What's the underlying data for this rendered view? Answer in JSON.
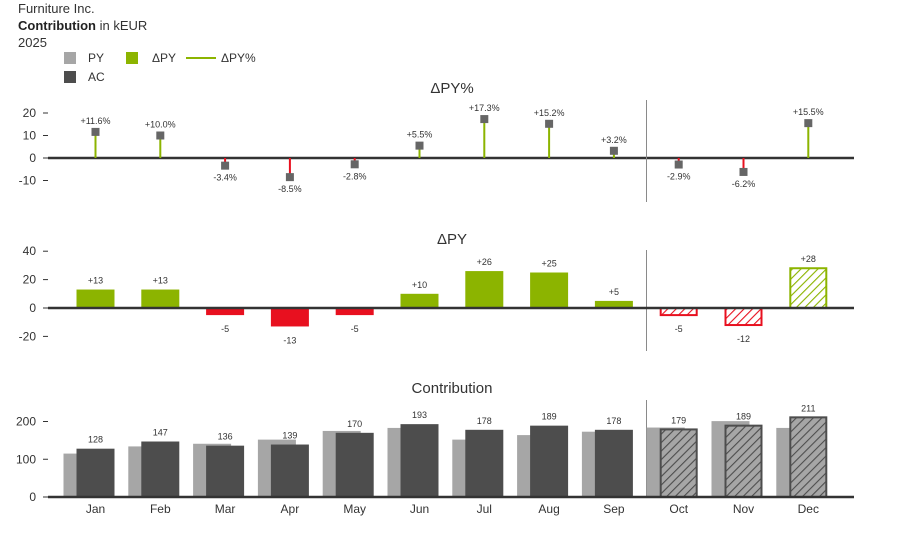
{
  "header": {
    "company": "Furniture Inc.",
    "measure": "Contribution",
    "unit_text": "in kEUR",
    "year": "2025"
  },
  "colors": {
    "py": "#a6a6a6",
    "ac": "#4d4d4d",
    "positive": "#8cb400",
    "negative": "#e8101f",
    "axis": "#333333",
    "divider": "#8a8a8a"
  },
  "legend": [
    {
      "key": "py",
      "label": "PY",
      "type": "box"
    },
    {
      "key": "ac",
      "label": "AC",
      "type": "box"
    },
    {
      "key": "dpy",
      "label": "ΔPY",
      "type": "box"
    },
    {
      "key": "dpy_pct",
      "label": "ΔPY%",
      "type": "line"
    }
  ],
  "chart_data": [
    {
      "type": "pin",
      "title": "ΔPY%",
      "categories": [
        "Jan",
        "Feb",
        "Mar",
        "Apr",
        "May",
        "Jun",
        "Jul",
        "Aug",
        "Sep",
        "Oct",
        "Nov",
        "Dec"
      ],
      "values": [
        11.6,
        10.0,
        -3.4,
        -8.5,
        -2.8,
        5.5,
        17.3,
        15.2,
        3.2,
        -2.9,
        -6.2,
        15.5
      ],
      "labels": [
        "+11.6%",
        "+10.0%",
        "-3.4%",
        "-8.5%",
        "-2.8%",
        "+5.5%",
        "+17.3%",
        "+15.2%",
        "+3.2%",
        "-2.9%",
        "-6.2%",
        "+15.5%"
      ],
      "yticks": [
        20,
        10,
        0,
        -10
      ],
      "ylim": [
        -10,
        20
      ]
    },
    {
      "type": "bar",
      "title": "ΔPY",
      "categories": [
        "Jan",
        "Feb",
        "Mar",
        "Apr",
        "May",
        "Jun",
        "Jul",
        "Aug",
        "Sep",
        "Oct",
        "Nov",
        "Dec"
      ],
      "values": [
        13,
        13,
        -5,
        -13,
        -5,
        10,
        26,
        25,
        5,
        -5,
        -12,
        28
      ],
      "labels": [
        "+13",
        "+13",
        "-5",
        "-13",
        "-5",
        "+10",
        "+26",
        "+25",
        "+5",
        "-5",
        "-12",
        "+28"
      ],
      "yticks": [
        40,
        20,
        0,
        -20
      ],
      "ylim": [
        -20,
        40
      ]
    },
    {
      "type": "bar",
      "title": "Contribution",
      "categories": [
        "Jan",
        "Feb",
        "Mar",
        "Apr",
        "May",
        "Jun",
        "Jul",
        "Aug",
        "Sep",
        "Oct",
        "Nov",
        "Dec"
      ],
      "series": [
        {
          "name": "PY",
          "values": [
            115,
            134,
            141,
            152,
            175,
            183,
            152,
            164,
            173,
            184,
            201,
            183
          ]
        },
        {
          "name": "AC",
          "values": [
            128,
            147,
            136,
            139,
            170,
            193,
            178,
            189,
            178,
            179,
            189,
            211
          ]
        }
      ],
      "labels": [
        "128",
        "147",
        "136",
        "139",
        "170",
        "193",
        "178",
        "189",
        "178",
        "179",
        "189",
        "211"
      ],
      "yticks": [
        200,
        100,
        0
      ],
      "ylim": [
        0,
        200
      ]
    }
  ],
  "forecast_start": "Oct"
}
